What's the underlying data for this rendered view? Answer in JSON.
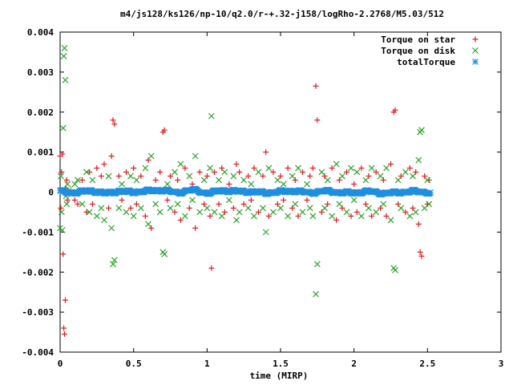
{
  "chart_data": {
    "type": "scatter",
    "title": "m4/js128/ks126/np-10/q2.0/r-+.32-j158/logRho-2.2768/M5.03/512",
    "xlabel": "time (MIRP)",
    "ylabel": "",
    "xlim": [
      0,
      3
    ],
    "ylim": [
      -0.004,
      0.004
    ],
    "x_ticks": [
      "0",
      "0.5",
      "1",
      "1.5",
      "2",
      "2.5",
      "3"
    ],
    "y_ticks": [
      "0.004",
      "0.003",
      "0.002",
      "0.001",
      "0",
      "-0.001",
      "-0.002",
      "-0.003",
      "-0.004"
    ],
    "grid": false,
    "legend_position": "top-right",
    "series": [
      {
        "name": "Torque on star",
        "marker": "plus",
        "color": "#e0191b",
        "points": [
          [
            0.0,
            0.0009
          ],
          [
            0.005,
            -0.0004
          ],
          [
            0.01,
            0.0005
          ],
          [
            0.015,
            0.00095
          ],
          [
            0.02,
            -0.00155
          ],
          [
            0.025,
            -0.0034
          ],
          [
            0.03,
            -0.00355
          ],
          [
            0.035,
            -0.0027
          ],
          [
            0.04,
            0.0001
          ],
          [
            0.045,
            0.0003
          ],
          [
            0.05,
            -0.0002
          ],
          [
            0.06,
            -5e-05
          ],
          [
            0.08,
            0.0
          ],
          [
            0.1,
            -0.0002
          ],
          [
            0.12,
            -0.0003
          ],
          [
            0.15,
            0.0003
          ],
          [
            0.18,
            -0.0005
          ],
          [
            0.2,
            0.0005
          ],
          [
            0.22,
            -0.0003
          ],
          [
            0.25,
            0.0006
          ],
          [
            0.28,
            0.0004
          ],
          [
            0.3,
            0.0007
          ],
          [
            0.33,
            -0.0004
          ],
          [
            0.35,
            0.0009
          ],
          [
            0.36,
            0.0018
          ],
          [
            0.37,
            0.0017
          ],
          [
            0.4,
            0.0004
          ],
          [
            0.42,
            -0.0002
          ],
          [
            0.45,
            0.0005
          ],
          [
            0.48,
            -0.0004
          ],
          [
            0.5,
            0.0006
          ],
          [
            0.52,
            -0.0003
          ],
          [
            0.55,
            0.0004
          ],
          [
            0.58,
            -0.0006
          ],
          [
            0.6,
            0.0008
          ],
          [
            0.62,
            -0.0009
          ],
          [
            0.65,
            0.0003
          ],
          [
            0.68,
            0.0005
          ],
          [
            0.7,
            0.0015
          ],
          [
            0.71,
            0.00155
          ],
          [
            0.73,
            -0.0002
          ],
          [
            0.75,
            0.0004
          ],
          [
            0.78,
            -0.0005
          ],
          [
            0.8,
            0.0003
          ],
          [
            0.82,
            -0.0007
          ],
          [
            0.85,
            0.0006
          ],
          [
            0.88,
            -0.0004
          ],
          [
            0.9,
            0.0002
          ],
          [
            0.92,
            -0.0009
          ],
          [
            0.95,
            0.0005
          ],
          [
            0.98,
            -0.0003
          ],
          [
            1.0,
            0.0004
          ],
          [
            1.02,
            -0.0006
          ],
          [
            1.03,
            -0.0019
          ],
          [
            1.05,
            0.0005
          ],
          [
            1.08,
            -0.0003
          ],
          [
            1.1,
            0.0006
          ],
          [
            1.12,
            -0.0005
          ],
          [
            1.15,
            0.0002
          ],
          [
            1.18,
            -0.0004
          ],
          [
            1.2,
            0.0007
          ],
          [
            1.22,
            0.0005
          ],
          [
            1.25,
            -0.0003
          ],
          [
            1.28,
            0.0004
          ],
          [
            1.3,
            -0.0002
          ],
          [
            1.32,
            0.0006
          ],
          [
            1.35,
            -0.0005
          ],
          [
            1.38,
            0.0004
          ],
          [
            1.4,
            0.001
          ],
          [
            1.42,
            -0.0006
          ],
          [
            1.45,
            0.0005
          ],
          [
            1.48,
            -0.0003
          ],
          [
            1.5,
            0.0004
          ],
          [
            1.52,
            -0.0002
          ],
          [
            1.55,
            0.0006
          ],
          [
            1.58,
            -0.0004
          ],
          [
            1.6,
            0.0003
          ],
          [
            1.62,
            -0.0006
          ],
          [
            1.65,
            0.0005
          ],
          [
            1.68,
            -0.0002
          ],
          [
            1.7,
            0.0004
          ],
          [
            1.72,
            0.0006
          ],
          [
            1.74,
            0.00265
          ],
          [
            1.75,
            0.0018
          ],
          [
            1.78,
            -0.0005
          ],
          [
            1.8,
            0.0004
          ],
          [
            1.82,
            -0.0003
          ],
          [
            1.85,
            0.0006
          ],
          [
            1.88,
            -0.0007
          ],
          [
            1.9,
            0.0003
          ],
          [
            1.92,
            -0.0004
          ],
          [
            1.95,
            0.0005
          ],
          [
            1.98,
            -0.0006
          ],
          [
            2.0,
            0.0002
          ],
          [
            2.02,
            -0.0005
          ],
          [
            2.05,
            0.0006
          ],
          [
            2.08,
            -0.0003
          ],
          [
            2.1,
            0.0004
          ],
          [
            2.12,
            -0.0006
          ],
          [
            2.15,
            0.0005
          ],
          [
            2.18,
            -0.0004
          ],
          [
            2.2,
            0.0003
          ],
          [
            2.22,
            -0.0006
          ],
          [
            2.25,
            0.0007
          ],
          [
            2.27,
            0.002
          ],
          [
            2.28,
            0.00205
          ],
          [
            2.3,
            -0.0003
          ],
          [
            2.32,
            0.0004
          ],
          [
            2.35,
            -0.0005
          ],
          [
            2.38,
            0.0006
          ],
          [
            2.4,
            -0.0004
          ],
          [
            2.42,
            0.0005
          ],
          [
            2.44,
            -0.0008
          ],
          [
            2.45,
            -0.0015
          ],
          [
            2.46,
            -0.0016
          ],
          [
            2.48,
            0.0004
          ],
          [
            2.5,
            -0.0003
          ],
          [
            2.51,
            0.0003
          ]
        ]
      },
      {
        "name": "Torque on disk",
        "marker": "cross",
        "color": "#2aa52a",
        "points": [
          [
            0.0,
            -0.0009
          ],
          [
            0.005,
            0.0004
          ],
          [
            0.01,
            -0.0005
          ],
          [
            0.015,
            -0.00095
          ],
          [
            0.02,
            0.0016
          ],
          [
            0.025,
            0.0034
          ],
          [
            0.03,
            0.0036
          ],
          [
            0.035,
            0.0028
          ],
          [
            0.04,
            -0.0001
          ],
          [
            0.045,
            -0.0003
          ],
          [
            0.05,
            0.0002
          ],
          [
            0.06,
            5e-05
          ],
          [
            0.08,
            0.0
          ],
          [
            0.1,
            0.0002
          ],
          [
            0.12,
            0.0003
          ],
          [
            0.15,
            -0.0003
          ],
          [
            0.18,
            0.0005
          ],
          [
            0.2,
            -0.0005
          ],
          [
            0.22,
            0.0003
          ],
          [
            0.25,
            -0.0006
          ],
          [
            0.28,
            -0.0004
          ],
          [
            0.3,
            -0.0007
          ],
          [
            0.33,
            0.0004
          ],
          [
            0.35,
            -0.0009
          ],
          [
            0.36,
            -0.0018
          ],
          [
            0.37,
            -0.0017
          ],
          [
            0.4,
            -0.0004
          ],
          [
            0.42,
            0.0002
          ],
          [
            0.45,
            -0.0005
          ],
          [
            0.48,
            0.0004
          ],
          [
            0.5,
            -0.0006
          ],
          [
            0.52,
            0.0003
          ],
          [
            0.55,
            -0.0004
          ],
          [
            0.58,
            0.0006
          ],
          [
            0.6,
            -0.0008
          ],
          [
            0.62,
            0.0009
          ],
          [
            0.65,
            -0.0003
          ],
          [
            0.68,
            -0.0005
          ],
          [
            0.7,
            -0.0015
          ],
          [
            0.71,
            -0.00155
          ],
          [
            0.73,
            0.0002
          ],
          [
            0.75,
            -0.0004
          ],
          [
            0.78,
            0.0005
          ],
          [
            0.8,
            -0.0003
          ],
          [
            0.82,
            0.0007
          ],
          [
            0.85,
            -0.0006
          ],
          [
            0.88,
            0.0004
          ],
          [
            0.9,
            -0.0002
          ],
          [
            0.92,
            0.0009
          ],
          [
            0.95,
            -0.0005
          ],
          [
            0.98,
            0.0003
          ],
          [
            1.0,
            -0.0004
          ],
          [
            1.02,
            0.0006
          ],
          [
            1.03,
            0.0019
          ],
          [
            1.05,
            -0.0005
          ],
          [
            1.08,
            0.0003
          ],
          [
            1.1,
            -0.0006
          ],
          [
            1.12,
            0.0005
          ],
          [
            1.15,
            -0.0002
          ],
          [
            1.18,
            0.0004
          ],
          [
            1.2,
            -0.0007
          ],
          [
            1.22,
            -0.0005
          ],
          [
            1.25,
            0.0003
          ],
          [
            1.28,
            -0.0004
          ],
          [
            1.3,
            0.0002
          ],
          [
            1.32,
            -0.0006
          ],
          [
            1.35,
            0.0005
          ],
          [
            1.38,
            -0.0004
          ],
          [
            1.4,
            -0.001
          ],
          [
            1.42,
            0.0006
          ],
          [
            1.45,
            -0.0005
          ],
          [
            1.48,
            0.0003
          ],
          [
            1.5,
            -0.0004
          ],
          [
            1.52,
            0.0002
          ],
          [
            1.55,
            -0.0006
          ],
          [
            1.58,
            0.0004
          ],
          [
            1.6,
            -0.0003
          ],
          [
            1.62,
            0.0006
          ],
          [
            1.65,
            -0.0005
          ],
          [
            1.68,
            0.0002
          ],
          [
            1.7,
            -0.0004
          ],
          [
            1.72,
            -0.0006
          ],
          [
            1.74,
            -0.00255
          ],
          [
            1.75,
            -0.0018
          ],
          [
            1.78,
            0.0005
          ],
          [
            1.8,
            -0.0004
          ],
          [
            1.82,
            0.0003
          ],
          [
            1.85,
            -0.0006
          ],
          [
            1.88,
            0.0007
          ],
          [
            1.9,
            -0.0003
          ],
          [
            1.92,
            0.0004
          ],
          [
            1.95,
            -0.0005
          ],
          [
            1.98,
            0.0006
          ],
          [
            2.0,
            -0.0002
          ],
          [
            2.02,
            0.0005
          ],
          [
            2.05,
            -0.0006
          ],
          [
            2.08,
            0.0003
          ],
          [
            2.1,
            -0.0004
          ],
          [
            2.12,
            0.0006
          ],
          [
            2.15,
            -0.0005
          ],
          [
            2.18,
            0.0004
          ],
          [
            2.2,
            -0.0003
          ],
          [
            2.22,
            0.0006
          ],
          [
            2.25,
            -0.0007
          ],
          [
            2.27,
            -0.0019
          ],
          [
            2.28,
            -0.00195
          ],
          [
            2.3,
            0.0003
          ],
          [
            2.32,
            -0.0004
          ],
          [
            2.35,
            0.0005
          ],
          [
            2.38,
            -0.0006
          ],
          [
            2.4,
            0.0004
          ],
          [
            2.42,
            -0.0005
          ],
          [
            2.44,
            0.0008
          ],
          [
            2.45,
            0.0015
          ],
          [
            2.46,
            0.00155
          ],
          [
            2.48,
            -0.0004
          ],
          [
            2.5,
            0.0003
          ],
          [
            2.51,
            -0.0003
          ]
        ]
      },
      {
        "name": "totalTorque",
        "marker": "star",
        "color": "#1f8fe0",
        "x_range": [
          0.0,
          2.52
        ],
        "step": 0.005,
        "approx_values": [
          [
            0.0,
            2e-05
          ],
          [
            0.1,
            -2e-05
          ],
          [
            0.2,
            4e-05
          ],
          [
            0.3,
            -3e-05
          ],
          [
            0.4,
            2e-05
          ],
          [
            0.5,
            0.0
          ],
          [
            0.6,
            3e-05
          ],
          [
            0.7,
            5e-05
          ],
          [
            0.8,
            -2e-05
          ],
          [
            0.9,
            6e-05
          ],
          [
            1.0,
            -3e-05
          ],
          [
            1.1,
            4e-05
          ],
          [
            1.2,
            2e-05
          ],
          [
            1.3,
            1e-05
          ],
          [
            1.4,
            -2e-05
          ],
          [
            1.5,
            1e-05
          ],
          [
            1.6,
            3e-05
          ],
          [
            1.7,
            -2e-05
          ],
          [
            1.8,
            3e-05
          ],
          [
            1.9,
            -1e-05
          ],
          [
            2.0,
            -2e-05
          ],
          [
            2.1,
            2e-05
          ],
          [
            2.2,
            -3e-05
          ],
          [
            2.3,
            -1e-05
          ],
          [
            2.4,
            2e-05
          ],
          [
            2.52,
            -1e-05
          ]
        ]
      }
    ]
  }
}
